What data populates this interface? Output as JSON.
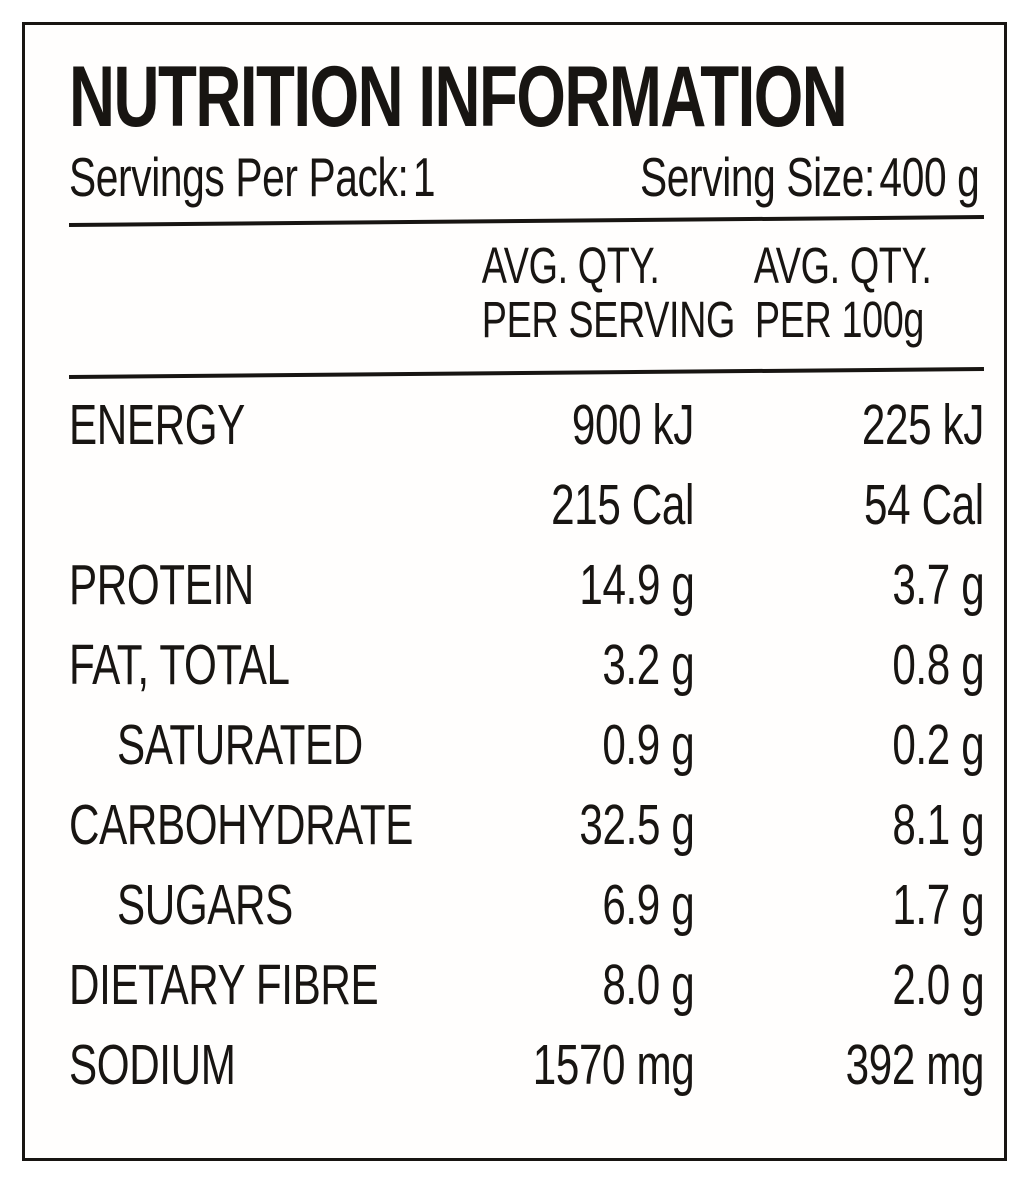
{
  "nutrition_label": {
    "title": "NUTRITION INFORMATION",
    "servings_per_pack": {
      "label": "Servings Per Pack:",
      "value": "1"
    },
    "serving_size": {
      "label": "Serving Size:",
      "value": "400 g"
    },
    "columns": [
      {
        "line1": "AVG. QTY.",
        "line2": "PER SERVING"
      },
      {
        "line1": "AVG. QTY.",
        "line2": "PER 100g"
      }
    ],
    "rows": [
      {
        "label": "ENERGY",
        "per_serving": "900 kJ",
        "per_100g": "225 kJ"
      },
      {
        "label": "",
        "per_serving": "215 Cal",
        "per_100g": "54 Cal"
      },
      {
        "label": "PROTEIN",
        "per_serving": "14.9 g",
        "per_100g": "3.7 g"
      },
      {
        "label": "FAT, TOTAL",
        "per_serving": "3.2 g",
        "per_100g": "0.8 g"
      },
      {
        "label": "SATURATED",
        "per_serving": "0.9 g",
        "per_100g": "0.2 g"
      },
      {
        "label": "CARBOHYDRATE",
        "per_serving": "32.5 g",
        "per_100g": "8.1 g"
      },
      {
        "label": "SUGARS",
        "per_serving": "6.9 g",
        "per_100g": "1.7 g"
      },
      {
        "label": "DIETARY FIBRE",
        "per_serving": "8.0 g",
        "per_100g": "2.0 g"
      },
      {
        "label": "SODIUM",
        "per_serving": "1570 mg",
        "per_100g": "392 mg"
      }
    ],
    "colors": {
      "ink": "#181512",
      "paper": "#ffffff"
    }
  }
}
